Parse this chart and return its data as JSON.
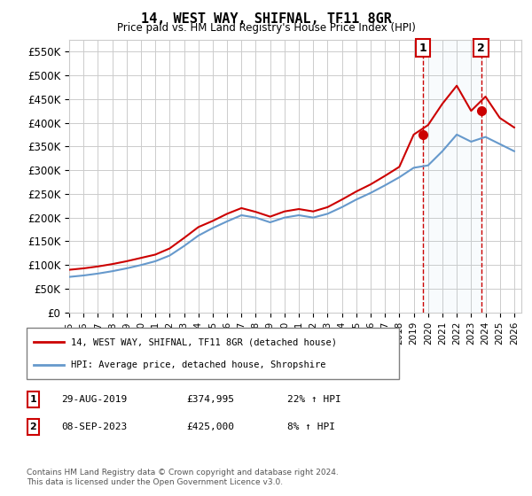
{
  "title": "14, WEST WAY, SHIFNAL, TF11 8GR",
  "subtitle": "Price paid vs. HM Land Registry's House Price Index (HPI)",
  "years_hpi": [
    1995,
    1996,
    1997,
    1998,
    1999,
    2000,
    2001,
    2002,
    2003,
    2004,
    2005,
    2006,
    2007,
    2008,
    2009,
    2010,
    2011,
    2012,
    2013,
    2014,
    2015,
    2016,
    2017,
    2018,
    2019,
    2020,
    2021,
    2022,
    2023,
    2024,
    2025,
    2026
  ],
  "hpi_values": [
    75000,
    78000,
    82000,
    87000,
    93000,
    100000,
    108000,
    120000,
    140000,
    162000,
    178000,
    192000,
    205000,
    200000,
    190000,
    200000,
    205000,
    200000,
    208000,
    222000,
    238000,
    252000,
    268000,
    285000,
    305000,
    310000,
    340000,
    375000,
    360000,
    370000,
    355000,
    340000
  ],
  "red_line_years": [
    1995,
    1996,
    1997,
    1998,
    1999,
    2000,
    2001,
    2002,
    2003,
    2004,
    2005,
    2006,
    2007,
    2008,
    2009,
    2010,
    2011,
    2012,
    2013,
    2014,
    2015,
    2016,
    2017,
    2018,
    2019,
    2020,
    2021,
    2022,
    2023,
    2024,
    2025,
    2026
  ],
  "red_line_values": [
    90000,
    93000,
    97000,
    102000,
    108000,
    115000,
    122000,
    135000,
    157000,
    180000,
    193000,
    208000,
    220000,
    212000,
    202000,
    213000,
    218000,
    213000,
    222000,
    238000,
    255000,
    270000,
    288000,
    307000,
    375000,
    395000,
    440000,
    478000,
    425000,
    455000,
    410000,
    390000
  ],
  "marker1_year": 2019.66,
  "marker1_value": 374995,
  "marker1_label": "1",
  "marker2_year": 2023.69,
  "marker2_value": 425000,
  "marker2_label": "2",
  "vline1_year": 2019.66,
  "vline2_year": 2023.69,
  "ylim": [
    0,
    575000
  ],
  "yticks": [
    0,
    50000,
    100000,
    150000,
    200000,
    250000,
    300000,
    350000,
    400000,
    450000,
    500000,
    550000
  ],
  "ytick_labels": [
    "£0",
    "£50K",
    "£100K",
    "£150K",
    "£200K",
    "£250K",
    "£300K",
    "£350K",
    "£400K",
    "£450K",
    "£500K",
    "£550K"
  ],
  "xtick_years": [
    1995,
    1996,
    1997,
    1998,
    1999,
    2000,
    2001,
    2002,
    2003,
    2004,
    2005,
    2006,
    2007,
    2008,
    2009,
    2010,
    2011,
    2012,
    2013,
    2014,
    2015,
    2016,
    2017,
    2018,
    2019,
    2020,
    2021,
    2022,
    2023,
    2024,
    2025,
    2026
  ],
  "red_color": "#cc0000",
  "blue_color": "#6699cc",
  "vline_color": "#cc0000",
  "grid_color": "#cccccc",
  "bg_color": "#ffffff",
  "legend1_label": "14, WEST WAY, SHIFNAL, TF11 8GR (detached house)",
  "legend2_label": "HPI: Average price, detached house, Shropshire",
  "table_row1": [
    "1",
    "29-AUG-2019",
    "£374,995",
    "22% ↑ HPI"
  ],
  "table_row2": [
    "2",
    "08-SEP-2023",
    "£425,000",
    "8% ↑ HPI"
  ],
  "footnote": "Contains HM Land Registry data © Crown copyright and database right 2024.\nThis data is licensed under the Open Government Licence v3.0."
}
